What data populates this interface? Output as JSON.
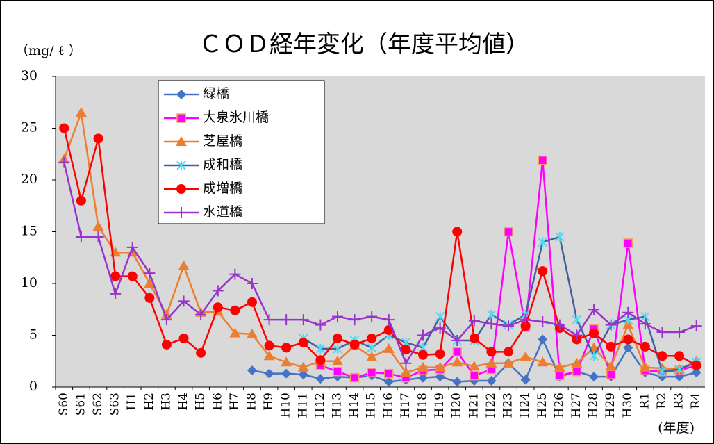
{
  "chart_data": {
    "type": "line",
    "title": "ＣＯＤ経年変化（年度平均値）",
    "y_label": "（mg/ ℓ ）",
    "x_label": "(年度)",
    "categories": [
      "S60",
      "S61",
      "S62",
      "S63",
      "H1",
      "H2",
      "H3",
      "H4",
      "H5",
      "H6",
      "H7",
      "H8",
      "H9",
      "H10",
      "H11",
      "H12",
      "H13",
      "H14",
      "H15",
      "H16",
      "H17",
      "H18",
      "H19",
      "H20",
      "H21",
      "H22",
      "H23",
      "H24",
      "H25",
      "H26",
      "H27",
      "H28",
      "H29",
      "H30",
      "R1",
      "R2",
      "R3",
      "R4"
    ],
    "ylim": [
      0,
      30
    ],
    "yticks": [
      0,
      5,
      10,
      15,
      20,
      25,
      30
    ],
    "grid": false,
    "legend": "upper-left",
    "series": [
      {
        "name": "緑橋",
        "color": "#4472c4",
        "marker": "diamond",
        "marker_color": "#4472c4",
        "values": [
          null,
          null,
          null,
          null,
          null,
          null,
          null,
          null,
          null,
          null,
          null,
          1.6,
          1.3,
          1.3,
          1.2,
          0.8,
          1,
          0.9,
          1.1,
          0.5,
          0.7,
          0.9,
          1,
          0.5,
          0.6,
          0.6,
          2.3,
          0.7,
          4.6,
          1,
          1.5,
          1,
          1,
          3.8,
          1.4,
          1,
          1,
          1.4
        ]
      },
      {
        "name": "大泉氷川橋",
        "color": "#ff00ff",
        "marker": "square",
        "marker_color": "#ff00ff",
        "values": [
          null,
          null,
          null,
          null,
          null,
          null,
          null,
          null,
          null,
          null,
          null,
          null,
          null,
          null,
          null,
          2.1,
          1.5,
          0.9,
          1.4,
          1.3,
          0.9,
          1.6,
          1.7,
          3.4,
          1.1,
          1.7,
          15,
          5.8,
          21.9,
          1.1,
          1.5,
          5.6,
          1.2,
          13.9,
          1.6,
          1.5,
          1.6,
          2.1
        ]
      },
      {
        "name": "芝屋橋",
        "color": "#ed7d31",
        "marker": "triangle",
        "marker_color": "#ed7d31",
        "values": [
          22,
          26.5,
          15.5,
          13,
          13,
          10,
          7,
          11.7,
          7.2,
          7.3,
          5.2,
          5.1,
          3,
          2.4,
          1.9,
          2.5,
          2.5,
          4,
          2.9,
          3.7,
          1.4,
          1.9,
          1.9,
          2.4,
          2,
          2.3,
          2.3,
          2.9,
          2.4,
          1.9,
          2.3,
          3.8,
          2,
          6,
          1.9,
          1.8,
          1.7,
          2.5
        ]
      },
      {
        "name": "成和橋",
        "color": "#3f619f",
        "marker": "star",
        "marker_color": "#4fd8f0",
        "values": [
          null,
          null,
          null,
          null,
          null,
          null,
          null,
          null,
          null,
          null,
          null,
          null,
          null,
          null,
          4.7,
          3.7,
          3.7,
          4.5,
          3.8,
          5,
          4.3,
          3.8,
          6.8,
          4.5,
          4.5,
          7,
          6,
          7,
          14,
          14.5,
          6.5,
          3,
          6,
          6.5,
          6.8,
          1.5,
          1.7,
          2.4
        ]
      },
      {
        "name": "成増橋",
        "color": "#ff0000",
        "marker": "circle",
        "marker_color": "#ff0000",
        "values": [
          25,
          18,
          24,
          10.7,
          10.7,
          8.6,
          4.1,
          4.7,
          3.3,
          7.7,
          7.4,
          8.2,
          4,
          3.8,
          4.3,
          2.6,
          4.7,
          4.1,
          4.7,
          5.5,
          3.6,
          3.1,
          3.2,
          15,
          4.7,
          3.4,
          3.4,
          5.9,
          11.2,
          5.7,
          4.6,
          5.2,
          3.9,
          4.6,
          3.9,
          3,
          3,
          2.1
        ]
      },
      {
        "name": "水道橋",
        "color": "#9933cc",
        "marker": "plus",
        "marker_color": "#9933cc",
        "values": [
          21.7,
          14.5,
          14.5,
          9,
          13.5,
          11,
          6.5,
          8.3,
          7,
          9.3,
          10.9,
          10,
          6.5,
          6.5,
          6.5,
          6,
          6.8,
          6.5,
          6.8,
          6.5,
          2.3,
          5,
          5.7,
          4.5,
          6.4,
          6.1,
          5.9,
          6.5,
          6.3,
          6,
          5,
          7.5,
          6,
          7.2,
          6.1,
          5.3,
          5.3,
          5.9
        ]
      }
    ]
  }
}
